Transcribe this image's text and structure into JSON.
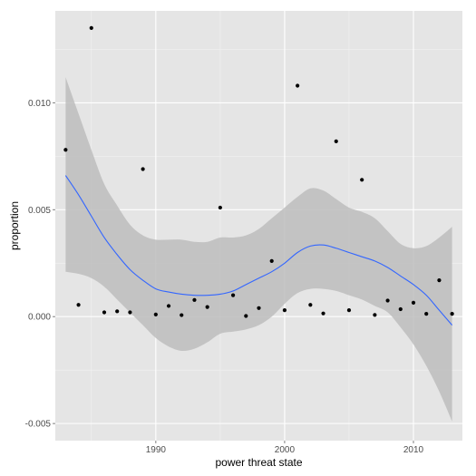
{
  "chart_data": {
    "type": "scatter",
    "title": "",
    "xlabel": "power threat state",
    "ylabel": "proportion",
    "xlim": [
      1982.2,
      2013.8
    ],
    "ylim": [
      -0.0058,
      0.0143
    ],
    "x_ticks": [
      1990,
      2000,
      2010
    ],
    "y_ticks": [
      -0.005,
      0.0,
      0.005,
      0.01
    ],
    "x_tick_labels": [
      "1990",
      "2000",
      "2010"
    ],
    "y_tick_labels": [
      "-0.005",
      "0.000",
      "0.005",
      "0.010"
    ],
    "grid": true,
    "background": "#e5e5e5",
    "point_color": "#000000",
    "smooth_color": "#3366ff",
    "ribbon_color": "#bdbdbd",
    "series": [
      {
        "kind": "points",
        "x": [
          1983,
          1984,
          1985,
          1986,
          1987,
          1988,
          1989,
          1990,
          1991,
          1992,
          1993,
          1994,
          1995,
          1996,
          1997,
          1998,
          1999,
          2000,
          2001,
          2002,
          2003,
          2004,
          2005,
          2006,
          2007,
          2008,
          2009,
          2010,
          2011,
          2012,
          2013
        ],
        "y": [
          0.0078,
          0.00055,
          0.0135,
          0.0002,
          0.00025,
          0.0002,
          0.0069,
          0.0001,
          0.0005,
          7e-05,
          0.00078,
          0.00045,
          0.0051,
          0.001,
          3e-05,
          0.0004,
          0.0026,
          0.0003,
          0.0108,
          0.00055,
          0.00015,
          0.0082,
          0.0003,
          0.0064,
          8e-05,
          0.00075,
          0.00035,
          0.00065,
          0.00013,
          0.0017,
          0.00013
        ]
      },
      {
        "kind": "smooth",
        "x": [
          1983,
          1984,
          1985,
          1986,
          1987,
          1988,
          1989,
          1990,
          1991,
          1992,
          1993,
          1994,
          1995,
          1996,
          1997,
          1998,
          1999,
          2000,
          2001,
          2002,
          2003,
          2004,
          2005,
          2006,
          2007,
          2008,
          2009,
          2010,
          2011,
          2012,
          2013
        ],
        "y": [
          0.0066,
          0.0057,
          0.0047,
          0.0037,
          0.0029,
          0.0022,
          0.0017,
          0.0013,
          0.00115,
          0.00105,
          0.001,
          0.001,
          0.00105,
          0.0012,
          0.0015,
          0.0018,
          0.0021,
          0.0025,
          0.003,
          0.0033,
          0.00335,
          0.0032,
          0.003,
          0.0028,
          0.0026,
          0.0023,
          0.0019,
          0.0015,
          0.001,
          0.0003,
          -0.0004
        ],
        "lower": [
          0.0021,
          0.002,
          0.0018,
          0.0014,
          0.0008,
          0.0002,
          -0.0004,
          -0.001,
          -0.0014,
          -0.0016,
          -0.0015,
          -0.0012,
          -0.0008,
          -0.0007,
          -0.0006,
          -0.0004,
          0.0,
          0.0006,
          0.0011,
          0.0013,
          0.0013,
          0.0012,
          0.001,
          0.0008,
          0.0005,
          0.0002,
          -0.0005,
          -0.0013,
          -0.0023,
          -0.0035,
          -0.0049
        ],
        "upper": [
          0.0112,
          0.0095,
          0.0078,
          0.0062,
          0.0052,
          0.0043,
          0.0038,
          0.0036,
          0.0036,
          0.0036,
          0.0035,
          0.0035,
          0.0037,
          0.0037,
          0.0038,
          0.0041,
          0.0046,
          0.0051,
          0.0056,
          0.006,
          0.0059,
          0.0055,
          0.0051,
          0.0049,
          0.0046,
          0.004,
          0.0034,
          0.0032,
          0.0033,
          0.0037,
          0.0042
        ]
      }
    ]
  }
}
